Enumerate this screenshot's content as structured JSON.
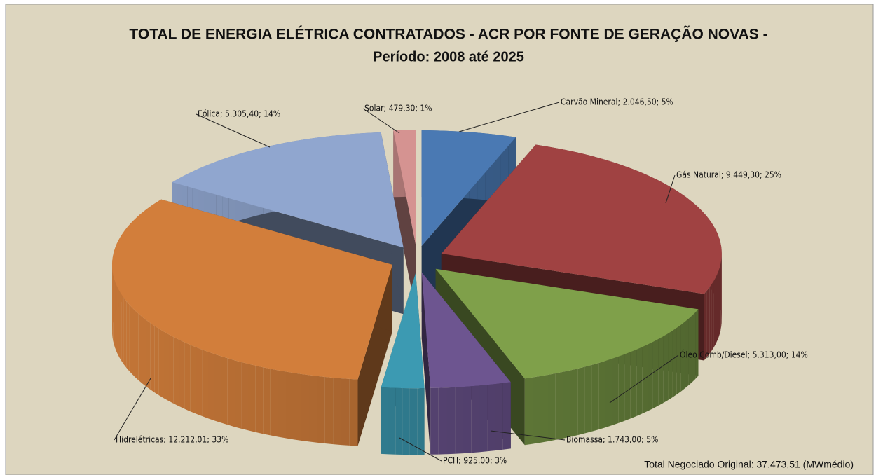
{
  "chart_data": {
    "type": "pie3d",
    "title": "TOTAL DE ENERGIA ELÉTRICA CONTRATADOS - ACR POR FONTE DE GERAÇÃO  NOVAS -",
    "subtitle": "Período: 2008 até 2025",
    "values": [
      2046.5,
      9449.3,
      5313.0,
      1743.0,
      925.0,
      12212.01,
      5305.4,
      479.3
    ],
    "value_labels": [
      "Carvão Mineral; 2.046,50; 5%",
      "Gás Natural; 9.449,30; 25%",
      "Óleo Comb/Diesel; 5.313,00; 14%",
      "Biomassa; 1.743,00; 5%",
      "PCH; 925,00; 3%",
      "Hidrelétricas; 12.212,01; 33%",
      "Eólica; 5.305,40; 14%",
      "Solar; 479,30; 1%"
    ],
    "colors": [
      "#4a79b3",
      "#a04242",
      "#7fa04a",
      "#6d5590",
      "#3c9ab2",
      "#d27e3b",
      "#90a6cf",
      "#d59391"
    ],
    "note": "Total Negociado Original: 37.473,51 (MWmédio)"
  }
}
